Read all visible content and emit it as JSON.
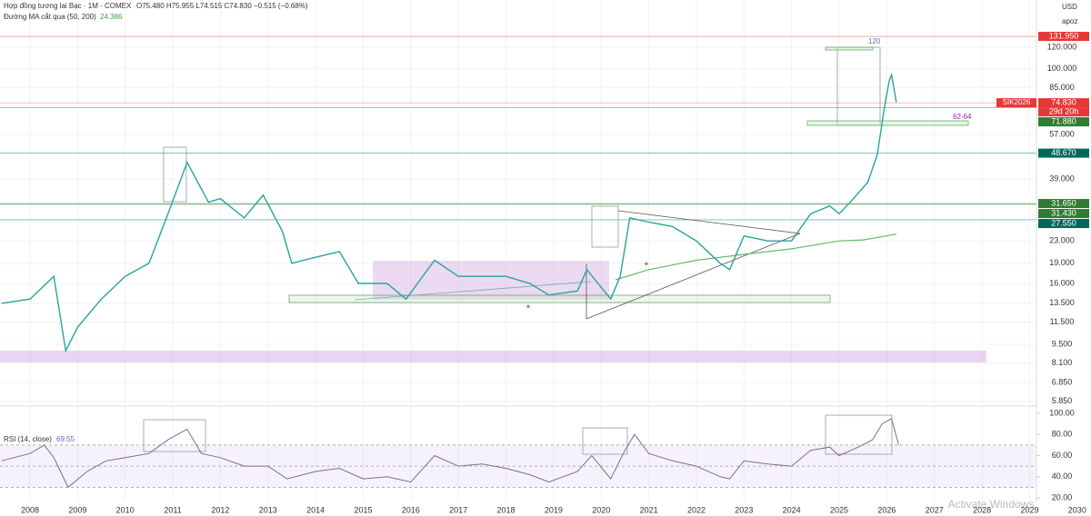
{
  "chart_data": {
    "type": "line",
    "header": {
      "symbol": "Hợp đồng tương lai Bạc · 1M · COMEX",
      "ohlc": "O75.480 H75.955 L74.515 C74.830 −0.515 (−0.68%)",
      "indicator": "Đường MA cắt qua (50, 200)",
      "indicator_value": "24.386"
    },
    "currency": "USD",
    "account": "apoz",
    "log_scale": true,
    "xlim": [
      2007.37,
      2030.29
    ],
    "xticks": [
      2008,
      2009,
      2010,
      2011,
      2012,
      2013,
      2014,
      2015,
      2016,
      2017,
      2018,
      2019,
      2020,
      2021,
      2022,
      2023,
      2024,
      2025,
      2026,
      2027,
      2028,
      2029,
      2030
    ],
    "ylim": [
      5.7,
      180
    ],
    "yticks": [
      {
        "value": 120,
        "label": "120.000"
      },
      {
        "value": 100,
        "label": "100.000"
      },
      {
        "value": 85,
        "label": "85.000"
      },
      {
        "value": 57,
        "label": "57.000"
      },
      {
        "value": 39,
        "label": "39.000"
      },
      {
        "value": 23,
        "label": "23.000"
      },
      {
        "value": 19,
        "label": "19.000"
      },
      {
        "value": 16,
        "label": "16.000"
      },
      {
        "value": 13.5,
        "label": "13.500"
      },
      {
        "value": 11.5,
        "label": "11.500"
      },
      {
        "value": 9.5,
        "label": "9.500"
      },
      {
        "value": 8.1,
        "label": "8.100"
      },
      {
        "value": 6.85,
        "label": "6.850"
      },
      {
        "value": 5.85,
        "label": "5.850"
      }
    ],
    "price": {
      "color": "#26a69a",
      "x": [
        2007.4,
        2008.0,
        2008.5,
        2008.75,
        2009.0,
        2009.5,
        2010.0,
        2010.5,
        2010.9,
        2011.3,
        2011.75,
        2012.0,
        2012.5,
        2012.9,
        2013.3,
        2013.5,
        2014.0,
        2014.5,
        2014.9,
        2015.5,
        2015.9,
        2016.5,
        2017.0,
        2017.5,
        2018.0,
        2018.5,
        2018.9,
        2019.5,
        2019.7,
        2020.2,
        2020.4,
        2020.6,
        2021.0,
        2021.5,
        2022.0,
        2022.5,
        2022.7,
        2023.0,
        2023.5,
        2024.0,
        2024.4,
        2024.8,
        2025.0,
        2025.3,
        2025.6,
        2025.8,
        2025.95,
        2026.05,
        2026.1,
        2026.2
      ],
      "values": [
        13.5,
        14,
        17,
        9,
        11,
        14,
        17,
        19,
        29,
        45,
        32,
        33,
        28,
        34,
        25,
        19,
        20,
        21,
        16,
        16,
        14,
        19.5,
        17,
        17,
        17,
        16,
        14.5,
        15,
        18,
        14,
        17,
        28,
        27,
        26,
        23,
        19,
        18,
        24,
        23,
        23,
        29,
        31,
        29,
        33,
        38,
        48,
        72,
        90,
        95,
        75
      ]
    },
    "ma": {
      "color": "#66bb6a",
      "x": [
        2020.3,
        2021.0,
        2022.0,
        2023.0,
        2024.0,
        2025.0,
        2025.5,
        2026.0,
        2026.2
      ],
      "values": [
        16.5,
        18,
        19.5,
        20.5,
        21.5,
        23,
        23.2,
        24,
        24.4
      ]
    },
    "levels": [
      {
        "value": 131.95,
        "label": "131.950",
        "color": "#e53935"
      },
      {
        "value": 74.83,
        "label": "74.830",
        "color": "#e53935"
      },
      {
        "value": 71.88,
        "label": "71.880",
        "color": "#2e7d32"
      },
      {
        "value": 48.67,
        "label": "48.670",
        "color": "#00695c"
      },
      {
        "value": 31.65,
        "label": "31.650",
        "color": "#2e7d32"
      },
      {
        "value": 31.43,
        "label": "31.430",
        "color": "#2e7d32"
      },
      {
        "value": 27.55,
        "label": "27.550",
        "color": "#00695c"
      }
    ],
    "contract": "SIK2026",
    "countdown": "29d 20h",
    "annotations": [
      "120",
      "62-64"
    ],
    "rsi": {
      "title": "RSI (14, close)",
      "last": "69.55",
      "color": "#7b6f8e",
      "ylim": [
        16.6,
        106
      ],
      "yticks": [
        {
          "value": 100,
          "label": "100.00"
        },
        {
          "value": 80,
          "label": "80.00"
        },
        {
          "value": 60,
          "label": "60.00"
        },
        {
          "value": 40,
          "label": "40.00"
        },
        {
          "value": 20,
          "label": "20.00"
        }
      ],
      "bands": [
        70,
        50,
        30
      ],
      "x": [
        2007.4,
        2008.0,
        2008.3,
        2008.5,
        2008.8,
        2009.2,
        2009.6,
        2010.0,
        2010.5,
        2010.9,
        2011.3,
        2011.6,
        2012.0,
        2012.5,
        2013.0,
        2013.4,
        2014.0,
        2014.5,
        2015.0,
        2015.5,
        2016.0,
        2016.5,
        2017.0,
        2017.5,
        2018.0,
        2018.5,
        2018.9,
        2019.5,
        2019.8,
        2020.2,
        2020.5,
        2020.7,
        2021.0,
        2021.5,
        2022.0,
        2022.5,
        2022.7,
        2023.0,
        2023.5,
        2024.0,
        2024.4,
        2024.8,
        2025.0,
        2025.4,
        2025.7,
        2025.9,
        2026.1,
        2026.25
      ],
      "values": [
        55,
        62,
        70,
        58,
        30,
        45,
        55,
        58,
        62,
        75,
        85,
        62,
        58,
        50,
        50,
        38,
        45,
        48,
        38,
        40,
        35,
        60,
        50,
        52,
        48,
        42,
        35,
        45,
        60,
        38,
        65,
        80,
        62,
        55,
        50,
        40,
        38,
        55,
        52,
        50,
        65,
        68,
        60,
        68,
        75,
        90,
        95,
        70
      ]
    },
    "watermark": "Activate Windows"
  }
}
